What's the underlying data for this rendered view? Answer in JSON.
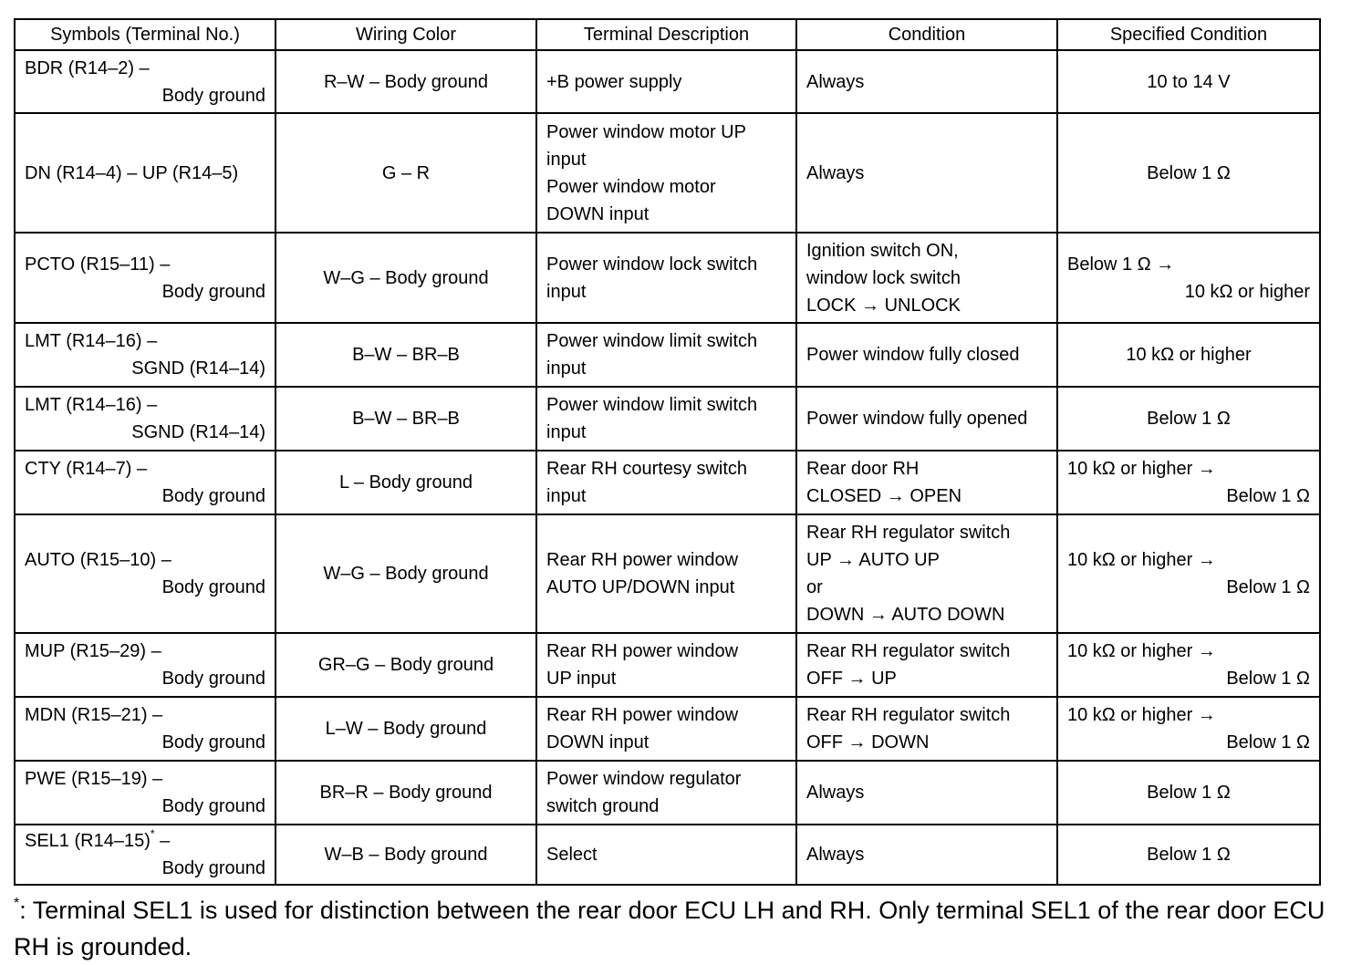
{
  "headers": [
    "Symbols (Terminal No.)",
    "Wiring Color",
    "Terminal Description",
    "Condition",
    "Specified Condition"
  ],
  "rows": [
    {
      "symbol": [
        "BDR (R14–2) –",
        "Body ground"
      ],
      "wiring": "R–W – Body ground",
      "description": [
        "+B power supply"
      ],
      "condition": [
        "Always"
      ],
      "spec": [
        "10 to 14 V"
      ]
    },
    {
      "symbol": [
        "DN (R14–4) – UP (R14–5)"
      ],
      "wiring": "G – R",
      "description": [
        "Power window motor UP",
        "input",
        "Power window motor",
        "DOWN input"
      ],
      "condition": [
        "Always"
      ],
      "spec": [
        "Below 1 Ω"
      ]
    },
    {
      "symbol": [
        "PCTO (R15–11) –",
        "Body ground"
      ],
      "wiring": "W–G – Body ground",
      "description": [
        "Power window lock switch",
        "input"
      ],
      "condition": [
        "Ignition switch ON,",
        "window lock switch",
        "LOCK → UNLOCK"
      ],
      "spec": [
        "Below 1 Ω →",
        "10 kΩ or higher"
      ]
    },
    {
      "symbol": [
        "LMT (R14–16) –",
        "SGND (R14–14)"
      ],
      "wiring": "B–W – BR–B",
      "description": [
        "Power window limit switch",
        "input"
      ],
      "condition": [
        "Power window fully closed"
      ],
      "spec": [
        "10 kΩ or higher"
      ]
    },
    {
      "symbol": [
        "LMT (R14–16) –",
        "SGND (R14–14)"
      ],
      "wiring": "B–W – BR–B",
      "description": [
        "Power window limit switch",
        "input"
      ],
      "condition": [
        "Power window fully opened"
      ],
      "spec": [
        "Below 1 Ω"
      ]
    },
    {
      "symbol": [
        "CTY (R14–7) –",
        "Body ground"
      ],
      "wiring": "L – Body ground",
      "description": [
        "Rear RH courtesy switch",
        "input"
      ],
      "condition": [
        "Rear door RH",
        "CLOSED → OPEN"
      ],
      "spec": [
        "10 kΩ or higher →",
        "Below 1 Ω"
      ]
    },
    {
      "symbol": [
        "AUTO (R15–10) –",
        "Body ground"
      ],
      "wiring": "W–G – Body ground",
      "description": [
        "Rear RH power window",
        "AUTO UP/DOWN input"
      ],
      "condition": [
        "Rear RH regulator switch",
        "UP → AUTO UP",
        "or",
        "DOWN → AUTO DOWN"
      ],
      "spec": [
        "10 kΩ or higher →",
        "Below 1 Ω"
      ]
    },
    {
      "symbol": [
        "MUP (R15–29) –",
        "Body ground"
      ],
      "wiring": "GR–G – Body ground",
      "description": [
        "Rear RH power window",
        "UP input"
      ],
      "condition": [
        "Rear RH regulator switch",
        "OFF → UP"
      ],
      "spec": [
        "10 kΩ or higher →",
        "Below 1 Ω"
      ]
    },
    {
      "symbol": [
        "MDN (R15–21) –",
        "Body ground"
      ],
      "wiring": "L–W – Body ground",
      "description": [
        "Rear RH power window",
        "DOWN input"
      ],
      "condition": [
        "Rear RH regulator switch",
        "OFF → DOWN"
      ],
      "spec": [
        "10 kΩ or higher →",
        "Below 1 Ω"
      ]
    },
    {
      "symbol": [
        "PWE (R15–19) –",
        "Body ground"
      ],
      "wiring": "BR–R – Body ground",
      "description": [
        "Power window regulator",
        "switch ground"
      ],
      "condition": [
        "Always"
      ],
      "spec": [
        "Below 1 Ω"
      ]
    },
    {
      "symbol": [
        "SEL1 (R14–15)",
        "Body ground"
      ],
      "symbol_sup": "*",
      "symbol_after": " –",
      "wiring": "W–B – Body ground",
      "description": [
        "Select"
      ],
      "condition": [
        "Always"
      ],
      "spec": [
        "Below 1 Ω"
      ]
    }
  ],
  "footnote": {
    "mark": "*",
    "text": ": Terminal SEL1 is used for distinction between the rear door ECU LH and RH. Only terminal SEL1 of the rear door ECU RH is grounded."
  }
}
